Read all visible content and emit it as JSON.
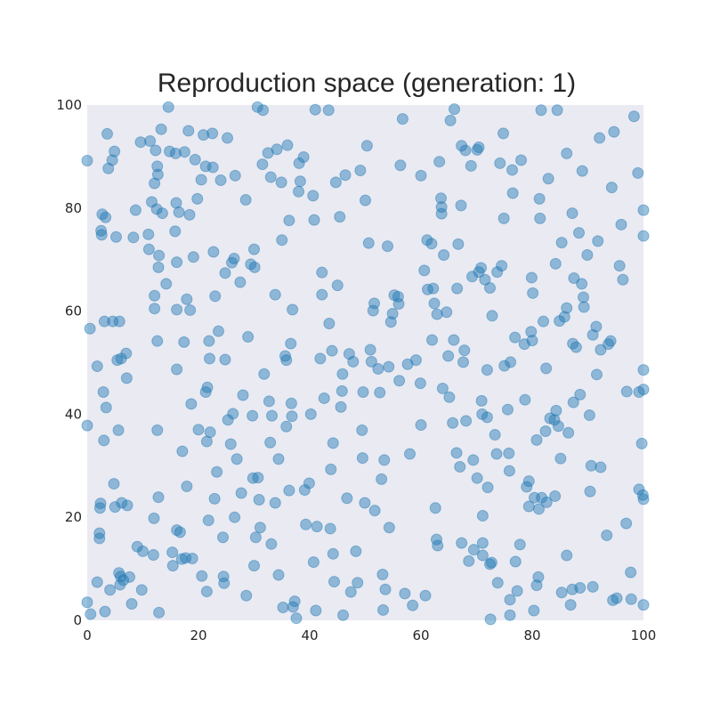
{
  "chart_data": {
    "type": "scatter",
    "title": "Reproduction space (generation: 1)",
    "xlabel": "",
    "ylabel": "",
    "xlim": [
      0,
      100
    ],
    "ylim": [
      0,
      100
    ],
    "xticks": [
      "0",
      "20",
      "40",
      "60",
      "80",
      "100"
    ],
    "yticks": [
      "0",
      "20",
      "40",
      "60",
      "80",
      "100"
    ],
    "grid": false,
    "point_color": "#1f77b4",
    "point_alpha": 0.45,
    "background_color": "#eaeaf2",
    "points": [
      [
        0,
        89.2
      ],
      [
        0.5,
        56.6
      ],
      [
        0,
        37.8
      ],
      [
        0,
        3.5
      ],
      [
        0.6,
        1.2
      ],
      [
        1.8,
        49.3
      ],
      [
        1.8,
        7.4
      ],
      [
        2.2,
        15.9
      ],
      [
        2.2,
        16.9
      ],
      [
        2.3,
        21.8
      ],
      [
        2.4,
        22.7
      ],
      [
        2.5,
        75.6
      ],
      [
        2.6,
        74.8
      ],
      [
        2.7,
        78.8
      ],
      [
        2.9,
        44.3
      ],
      [
        3.0,
        34.9
      ],
      [
        3.1,
        58.0
      ],
      [
        3.2,
        1.7
      ],
      [
        3.3,
        78.2
      ],
      [
        3.4,
        41.3
      ],
      [
        3.6,
        94.4
      ],
      [
        3.8,
        87.7
      ],
      [
        4.1,
        5.9
      ],
      [
        4.5,
        89.3
      ],
      [
        4.6,
        58.0
      ],
      [
        4.8,
        26.5
      ],
      [
        4.9,
        91.0
      ],
      [
        5.0,
        22.0
      ],
      [
        5.2,
        74.4
      ],
      [
        5.4,
        50.5
      ],
      [
        5.6,
        36.9
      ],
      [
        5.7,
        9.2
      ],
      [
        5.8,
        58.0
      ],
      [
        5.9,
        6.9
      ],
      [
        6.0,
        8.5
      ],
      [
        6.1,
        50.8
      ],
      [
        6.2,
        22.8
      ],
      [
        6.5,
        7.8
      ],
      [
        7.0,
        51.8
      ],
      [
        7.1,
        47.0
      ],
      [
        7.2,
        22.3
      ],
      [
        7.6,
        8.4
      ],
      [
        8.0,
        3.2
      ],
      [
        8.3,
        74.3
      ],
      [
        8.7,
        79.6
      ],
      [
        9.0,
        14.3
      ],
      [
        9.6,
        92.8
      ],
      [
        9.8,
        5.9
      ],
      [
        10.0,
        13.4
      ],
      [
        11.0,
        74.9
      ],
      [
        11.1,
        72.0
      ],
      [
        11.3,
        93.0
      ],
      [
        11.6,
        81.2
      ],
      [
        11.9,
        12.7
      ],
      [
        12.0,
        19.8
      ],
      [
        12.1,
        84.8
      ],
      [
        12.1,
        63.0
      ],
      [
        12.1,
        60.5
      ],
      [
        12.3,
        91.2
      ],
      [
        12.5,
        79.8
      ],
      [
        12.6,
        88.1
      ],
      [
        12.6,
        54.2
      ],
      [
        12.6,
        36.9
      ],
      [
        12.7,
        86.5
      ],
      [
        12.8,
        68.5
      ],
      [
        12.8,
        23.9
      ],
      [
        12.9,
        70.8
      ],
      [
        12.9,
        1.5
      ],
      [
        13.3,
        95.3
      ],
      [
        13.5,
        79.0
      ],
      [
        14.2,
        65.3
      ],
      [
        14.6,
        99.6
      ],
      [
        14.8,
        91.0
      ],
      [
        15.3,
        13.2
      ],
      [
        15.4,
        10.6
      ],
      [
        15.8,
        75.5
      ],
      [
        15.9,
        90.6
      ],
      [
        16.0,
        81.0
      ],
      [
        16.1,
        69.5
      ],
      [
        16.1,
        60.3
      ],
      [
        16.1,
        48.7
      ],
      [
        16.1,
        17.5
      ],
      [
        16.5,
        79.2
      ],
      [
        16.7,
        17.1
      ],
      [
        17.0,
        11.9
      ],
      [
        17.1,
        32.8
      ],
      [
        17.4,
        54.0
      ],
      [
        17.5,
        90.9
      ],
      [
        17.7,
        12.1
      ],
      [
        17.9,
        62.3
      ],
      [
        17.9,
        26.0
      ],
      [
        18.2,
        95.0
      ],
      [
        18.4,
        78.7
      ],
      [
        18.5,
        60.2
      ],
      [
        18.7,
        42.0
      ],
      [
        18.9,
        12.0
      ],
      [
        19.1,
        70.5
      ],
      [
        19.4,
        89.4
      ],
      [
        19.8,
        81.8
      ],
      [
        20.0,
        37.0
      ],
      [
        20.5,
        85.5
      ],
      [
        20.6,
        8.6
      ],
      [
        20.9,
        94.2
      ],
      [
        21.3,
        88.1
      ],
      [
        21.3,
        44.3
      ],
      [
        21.5,
        34.7
      ],
      [
        21.5,
        5.6
      ],
      [
        21.6,
        45.2
      ],
      [
        21.8,
        19.4
      ],
      [
        21.9,
        54.2
      ],
      [
        22.0,
        50.8
      ],
      [
        22.1,
        36.5
      ],
      [
        22.5,
        94.5
      ],
      [
        22.6,
        87.9
      ],
      [
        22.7,
        71.5
      ],
      [
        22.9,
        23.6
      ],
      [
        23.0,
        62.9
      ],
      [
        23.3,
        28.8
      ],
      [
        23.6,
        56.1
      ],
      [
        24.0,
        85.4
      ],
      [
        24.4,
        16.1
      ],
      [
        24.5,
        8.5
      ],
      [
        24.6,
        7.2
      ],
      [
        24.8,
        67.4
      ],
      [
        24.8,
        50.6
      ],
      [
        25.2,
        93.6
      ],
      [
        25.3,
        38.9
      ],
      [
        25.8,
        34.2
      ],
      [
        26.0,
        69.4
      ],
      [
        26.2,
        40.1
      ],
      [
        26.4,
        70.2
      ],
      [
        26.5,
        20.0
      ],
      [
        26.6,
        86.3
      ],
      [
        26.9,
        31.3
      ],
      [
        27.5,
        65.6
      ],
      [
        27.7,
        24.7
      ],
      [
        28.0,
        43.7
      ],
      [
        28.5,
        81.6
      ],
      [
        28.6,
        4.8
      ],
      [
        28.9,
        55.0
      ],
      [
        29.4,
        69.1
      ],
      [
        29.7,
        39.7
      ],
      [
        29.8,
        27.6
      ],
      [
        30.0,
        10.6
      ],
      [
        30.0,
        72.0
      ],
      [
        30.1,
        68.5
      ],
      [
        30.3,
        16.1
      ],
      [
        30.6,
        99.6
      ],
      [
        30.7,
        27.7
      ],
      [
        30.9,
        23.4
      ],
      [
        31.1,
        18.0
      ],
      [
        31.5,
        88.5
      ],
      [
        31.6,
        99.0
      ],
      [
        31.8,
        47.8
      ],
      [
        32.5,
        90.7
      ],
      [
        32.7,
        42.5
      ],
      [
        32.9,
        34.5
      ],
      [
        33.0,
        86.0
      ],
      [
        33.1,
        14.8
      ],
      [
        33.2,
        39.7
      ],
      [
        33.8,
        63.2
      ],
      [
        33.8,
        22.8
      ],
      [
        34.1,
        91.4
      ],
      [
        34.4,
        31.3
      ],
      [
        34.4,
        8.8
      ],
      [
        34.9,
        85.0
      ],
      [
        35.0,
        73.8
      ],
      [
        35.2,
        2.5
      ],
      [
        35.6,
        51.3
      ],
      [
        35.8,
        37.6
      ],
      [
        35.8,
        50.5
      ],
      [
        36.0,
        92.2
      ],
      [
        36.3,
        77.6
      ],
      [
        36.3,
        25.2
      ],
      [
        36.6,
        53.7
      ],
      [
        36.7,
        42.1
      ],
      [
        36.8,
        39.6
      ],
      [
        36.9,
        60.3
      ],
      [
        37.0,
        2.6
      ],
      [
        37.3,
        3.7
      ],
      [
        37.6,
        0.4
      ],
      [
        38.0,
        83.2
      ],
      [
        38.1,
        88.7
      ],
      [
        38.3,
        85.2
      ],
      [
        38.9,
        89.9
      ],
      [
        39.1,
        25.3
      ],
      [
        39.3,
        18.6
      ],
      [
        39.9,
        26.6
      ],
      [
        40.2,
        40.0
      ],
      [
        40.6,
        82.4
      ],
      [
        40.7,
        11.3
      ],
      [
        40.8,
        77.7
      ],
      [
        41.0,
        99.1
      ],
      [
        41.1,
        1.9
      ],
      [
        41.3,
        18.2
      ],
      [
        41.9,
        50.8
      ],
      [
        42.2,
        67.5
      ],
      [
        42.2,
        63.2
      ],
      [
        42.6,
        43.1
      ],
      [
        43.4,
        99.0
      ],
      [
        43.5,
        57.6
      ],
      [
        43.7,
        17.8
      ],
      [
        43.8,
        29.3
      ],
      [
        44.0,
        52.3
      ],
      [
        44.2,
        34.4
      ],
      [
        44.2,
        12.9
      ],
      [
        44.4,
        7.5
      ],
      [
        44.7,
        85.0
      ],
      [
        45.0,
        65.0
      ],
      [
        45.4,
        78.3
      ],
      [
        45.6,
        41.4
      ],
      [
        45.8,
        44.5
      ],
      [
        45.9,
        47.8
      ],
      [
        46.0,
        1.0
      ],
      [
        46.4,
        86.4
      ],
      [
        46.7,
        23.7
      ],
      [
        47.1,
        51.7
      ],
      [
        47.4,
        5.5
      ],
      [
        47.8,
        50.2
      ],
      [
        48.3,
        13.4
      ],
      [
        48.6,
        7.3
      ],
      [
        49.1,
        87.3
      ],
      [
        49.4,
        36.9
      ],
      [
        49.5,
        31.5
      ],
      [
        49.6,
        44.3
      ],
      [
        49.9,
        22.8
      ],
      [
        50.0,
        81.5
      ],
      [
        50.3,
        92.1
      ],
      [
        50.6,
        73.2
      ],
      [
        50.9,
        52.5
      ],
      [
        51.1,
        50.2
      ],
      [
        51.4,
        60.1
      ],
      [
        51.6,
        61.5
      ],
      [
        51.7,
        21.3
      ],
      [
        52.3,
        48.8
      ],
      [
        52.6,
        44.2
      ],
      [
        52.9,
        27.4
      ],
      [
        53.1,
        8.9
      ],
      [
        53.2,
        2.0
      ],
      [
        53.4,
        31.1
      ],
      [
        53.6,
        6.0
      ],
      [
        54.0,
        72.6
      ],
      [
        54.2,
        49.2
      ],
      [
        54.3,
        18.0
      ],
      [
        54.6,
        57.9
      ],
      [
        54.9,
        59.5
      ],
      [
        55.2,
        63.1
      ],
      [
        55.9,
        62.8
      ],
      [
        56.0,
        61.4
      ],
      [
        56.1,
        46.5
      ],
      [
        56.3,
        88.3
      ],
      [
        56.7,
        97.3
      ],
      [
        57.1,
        5.2
      ],
      [
        57.6,
        49.7
      ],
      [
        58.0,
        32.3
      ],
      [
        58.5,
        2.9
      ],
      [
        59.1,
        50.5
      ],
      [
        59.9,
        46.0
      ],
      [
        60.0,
        86.3
      ],
      [
        60.0,
        37.9
      ],
      [
        60.6,
        67.9
      ],
      [
        60.8,
        4.8
      ],
      [
        61.1,
        73.8
      ],
      [
        61.2,
        64.2
      ],
      [
        61.9,
        73.1
      ],
      [
        62.0,
        54.4
      ],
      [
        62.2,
        64.4
      ],
      [
        62.4,
        61.5
      ],
      [
        62.6,
        21.8
      ],
      [
        62.8,
        15.7
      ],
      [
        62.9,
        59.4
      ],
      [
        63.0,
        14.5
      ],
      [
        63.3,
        89.0
      ],
      [
        63.6,
        81.9
      ],
      [
        63.7,
        80.2
      ],
      [
        63.7,
        78.9
      ],
      [
        63.9,
        45.0
      ],
      [
        64.1,
        70.9
      ],
      [
        64.6,
        59.8
      ],
      [
        64.9,
        51.3
      ],
      [
        65.1,
        43.3
      ],
      [
        65.3,
        97.0
      ],
      [
        65.7,
        38.3
      ],
      [
        65.9,
        54.4
      ],
      [
        66.0,
        99.2
      ],
      [
        66.4,
        32.5
      ],
      [
        66.5,
        64.4
      ],
      [
        66.7,
        73.0
      ],
      [
        67.0,
        29.8
      ],
      [
        67.2,
        80.5
      ],
      [
        67.3,
        92.1
      ],
      [
        67.3,
        15.0
      ],
      [
        67.6,
        50.1
      ],
      [
        67.8,
        52.4
      ],
      [
        68.0,
        91.2
      ],
      [
        68.1,
        38.7
      ],
      [
        68.6,
        11.5
      ],
      [
        69.0,
        88.2
      ],
      [
        69.2,
        66.7
      ],
      [
        69.4,
        31.1
      ],
      [
        69.5,
        13.7
      ],
      [
        70.1,
        27.6
      ],
      [
        70.1,
        91.3
      ],
      [
        70.4,
        91.8
      ],
      [
        70.4,
        67.6
      ],
      [
        70.8,
        68.4
      ],
      [
        70.9,
        42.6
      ],
      [
        71.0,
        40.0
      ],
      [
        71.1,
        20.3
      ],
      [
        71.1,
        12.6
      ],
      [
        71.1,
        15.0
      ],
      [
        71.5,
        66.1
      ],
      [
        71.9,
        48.6
      ],
      [
        71.9,
        39.4
      ],
      [
        72.0,
        25.8
      ],
      [
        72.4,
        10.9
      ],
      [
        72.4,
        64.5
      ],
      [
        72.5,
        0.2
      ],
      [
        72.7,
        11.2
      ],
      [
        72.8,
        59.1
      ],
      [
        73.3,
        36.0
      ],
      [
        73.6,
        32.3
      ],
      [
        73.7,
        67.6
      ],
      [
        73.8,
        7.3
      ],
      [
        74.2,
        88.7
      ],
      [
        74.5,
        68.8
      ],
      [
        74.8,
        94.5
      ],
      [
        74.9,
        78.0
      ],
      [
        75.0,
        49.4
      ],
      [
        75.6,
        40.9
      ],
      [
        75.8,
        32.4
      ],
      [
        75.9,
        29.0
      ],
      [
        76.0,
        1.0
      ],
      [
        76.0,
        4.0
      ],
      [
        76.1,
        50.1
      ],
      [
        76.4,
        87.4
      ],
      [
        76.5,
        82.9
      ],
      [
        76.9,
        54.9
      ],
      [
        77.0,
        11.4
      ],
      [
        77.3,
        5.7
      ],
      [
        77.8,
        14.7
      ],
      [
        78.0,
        89.3
      ],
      [
        78.6,
        53.6
      ],
      [
        78.7,
        42.8
      ],
      [
        79.0,
        25.9
      ],
      [
        79.4,
        27.0
      ],
      [
        79.4,
        22.1
      ],
      [
        79.8,
        56.0
      ],
      [
        79.9,
        66.5
      ],
      [
        80.0,
        54.3
      ],
      [
        80.1,
        63.5
      ],
      [
        80.3,
        1.9
      ],
      [
        80.4,
        23.8
      ],
      [
        80.8,
        35.0
      ],
      [
        80.8,
        6.8
      ],
      [
        81.1,
        8.4
      ],
      [
        81.2,
        21.6
      ],
      [
        81.3,
        81.8
      ],
      [
        81.4,
        78.0
      ],
      [
        81.6,
        99.0
      ],
      [
        81.7,
        23.8
      ],
      [
        82.0,
        58.0
      ],
      [
        82.4,
        36.7
      ],
      [
        82.5,
        48.9
      ],
      [
        82.6,
        22.9
      ],
      [
        82.9,
        85.7
      ],
      [
        83.2,
        39.2
      ],
      [
        84.0,
        38.9
      ],
      [
        84.1,
        24.1
      ],
      [
        84.2,
        69.2
      ],
      [
        84.3,
        40.7
      ],
      [
        84.5,
        99.0
      ],
      [
        84.7,
        37.7
      ],
      [
        84.9,
        58.1
      ],
      [
        85.1,
        31.4
      ],
      [
        85.3,
        5.4
      ],
      [
        85.3,
        73.3
      ],
      [
        85.8,
        58.9
      ],
      [
        86.2,
        12.6
      ],
      [
        86.2,
        60.6
      ],
      [
        86.2,
        90.6
      ],
      [
        86.5,
        36.4
      ],
      [
        86.9,
        3.0
      ],
      [
        87.2,
        79.0
      ],
      [
        87.2,
        6.0
      ],
      [
        87.3,
        53.7
      ],
      [
        87.4,
        42.3
      ],
      [
        87.5,
        66.4
      ],
      [
        87.9,
        53.0
      ],
      [
        88.4,
        75.2
      ],
      [
        88.6,
        43.8
      ],
      [
        88.6,
        6.3
      ],
      [
        88.9,
        65.3
      ],
      [
        89.0,
        87.2
      ],
      [
        89.2,
        62.7
      ],
      [
        89.3,
        60.8
      ],
      [
        89.9,
        70.9
      ],
      [
        90.3,
        39.8
      ],
      [
        90.4,
        25.0
      ],
      [
        90.6,
        30.0
      ],
      [
        90.9,
        6.5
      ],
      [
        90.9,
        55.4
      ],
      [
        91.5,
        57.0
      ],
      [
        91.6,
        47.7
      ],
      [
        91.8,
        73.6
      ],
      [
        92.1,
        93.6
      ],
      [
        92.3,
        52.5
      ],
      [
        92.3,
        29.7
      ],
      [
        93.4,
        16.5
      ],
      [
        93.7,
        53.6
      ],
      [
        94.1,
        54.2
      ],
      [
        94.3,
        84.0
      ],
      [
        94.5,
        3.9
      ],
      [
        94.7,
        94.8
      ],
      [
        95.2,
        4.3
      ],
      [
        95.7,
        68.8
      ],
      [
        96.0,
        76.8
      ],
      [
        96.3,
        66.1
      ],
      [
        96.9,
        18.8
      ],
      [
        97.0,
        44.4
      ],
      [
        97.7,
        9.3
      ],
      [
        97.8,
        4.1
      ],
      [
        98.3,
        97.8
      ],
      [
        99.0,
        86.8
      ],
      [
        99.2,
        44.3
      ],
      [
        99.2,
        25.4
      ],
      [
        99.7,
        34.3
      ],
      [
        99.9,
        24.3
      ],
      [
        100.0,
        3.0
      ],
      [
        100.0,
        74.6
      ],
      [
        100.0,
        79.6
      ],
      [
        100.0,
        48.6
      ],
      [
        100.0,
        44.8
      ],
      [
        100.0,
        23.5
      ]
    ]
  }
}
